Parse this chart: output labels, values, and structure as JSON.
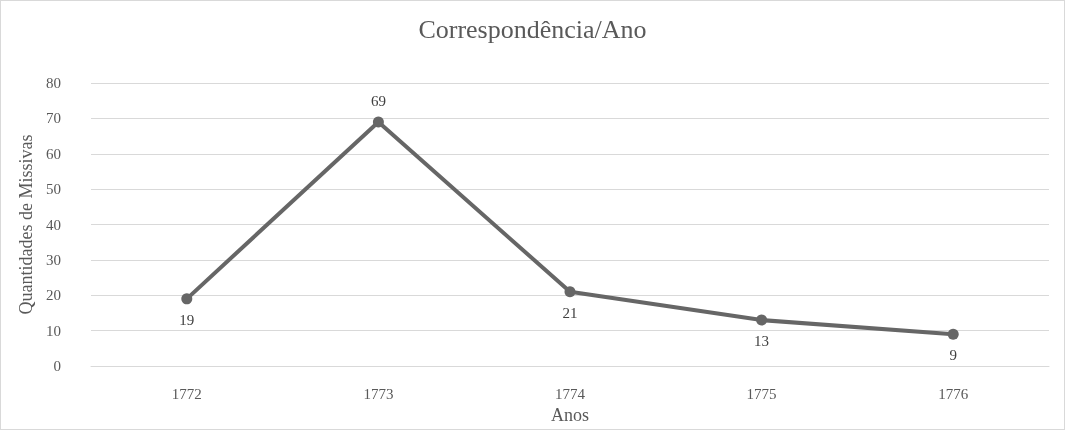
{
  "chart_data": {
    "type": "line",
    "title": "Correspondência/Ano",
    "xlabel": "Anos",
    "ylabel": "Quantidades de Missivas",
    "categories": [
      "1772",
      "1773",
      "1774",
      "1775",
      "1776"
    ],
    "series": [
      {
        "color": "#666666",
        "values": [
          19,
          69,
          21,
          13,
          9
        ]
      }
    ],
    "ylim": [
      0,
      80
    ],
    "yticks": [
      0,
      10,
      20,
      30,
      40,
      50,
      60,
      70,
      80
    ],
    "grid": "y",
    "marker": "circle",
    "line_style": "solid",
    "data_labels": true
  }
}
